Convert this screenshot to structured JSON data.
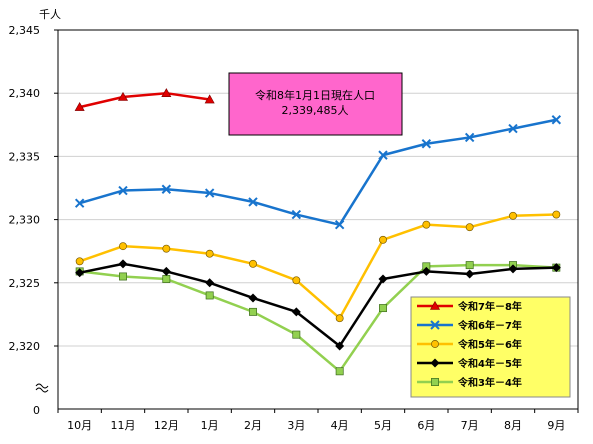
{
  "chart_data": {
    "type": "line",
    "unit_label": "千人",
    "categories": [
      "10月",
      "11月",
      "12月",
      "1月",
      "2月",
      "3月",
      "4月",
      "5月",
      "6月",
      "7月",
      "8月",
      "9月"
    ],
    "y_ticks": [
      "2,345",
      "2,340",
      "2,335",
      "2,330",
      "2,325",
      "2,320"
    ],
    "y_zero_label": "0",
    "ylim": [
      2315,
      2345
    ],
    "y_axis_break": true,
    "grid": "horizontal",
    "legend_placement": "bottom-right",
    "plot_background": "#ffffff",
    "series": [
      {
        "name": "令和7年－8年",
        "color": "#e00000",
        "marker": "triangle",
        "values": [
          2338.9,
          2339.7,
          2340.0,
          2339.5,
          null,
          null,
          null,
          null,
          null,
          null,
          null,
          null
        ]
      },
      {
        "name": "令和6年－7年",
        "color": "#1874cd",
        "marker": "x",
        "values": [
          2331.3,
          2332.3,
          2332.4,
          2332.1,
          2331.4,
          2330.4,
          2329.6,
          2335.1,
          2336.0,
          2336.5,
          2337.2,
          2337.9
        ]
      },
      {
        "name": "令和5年－6年",
        "color": "#ffc000",
        "marker": "circle",
        "values": [
          2326.7,
          2327.9,
          2327.7,
          2327.3,
          2326.5,
          2325.2,
          2322.2,
          2328.4,
          2329.6,
          2329.4,
          2330.3,
          2330.4
        ]
      },
      {
        "name": "令和4年－5年",
        "color": "#000000",
        "marker": "diamond",
        "values": [
          2325.8,
          2326.5,
          2325.9,
          2325.0,
          2323.8,
          2322.7,
          2320.0,
          2325.3,
          2325.9,
          2325.7,
          2326.1,
          2326.2
        ]
      },
      {
        "name": "令和3年－4年",
        "color": "#92d050",
        "marker": "square",
        "values": [
          2325.9,
          2325.5,
          2325.3,
          2324.0,
          2322.7,
          2320.9,
          2318.0,
          2323.0,
          2326.3,
          2326.4,
          2326.4,
          2326.2
        ]
      }
    ],
    "annotation": {
      "line1": "令和8年1月1日現在人口",
      "line2": "2,339,485人",
      "background": "#ff66cc"
    },
    "legend_background": "#ffff66"
  }
}
